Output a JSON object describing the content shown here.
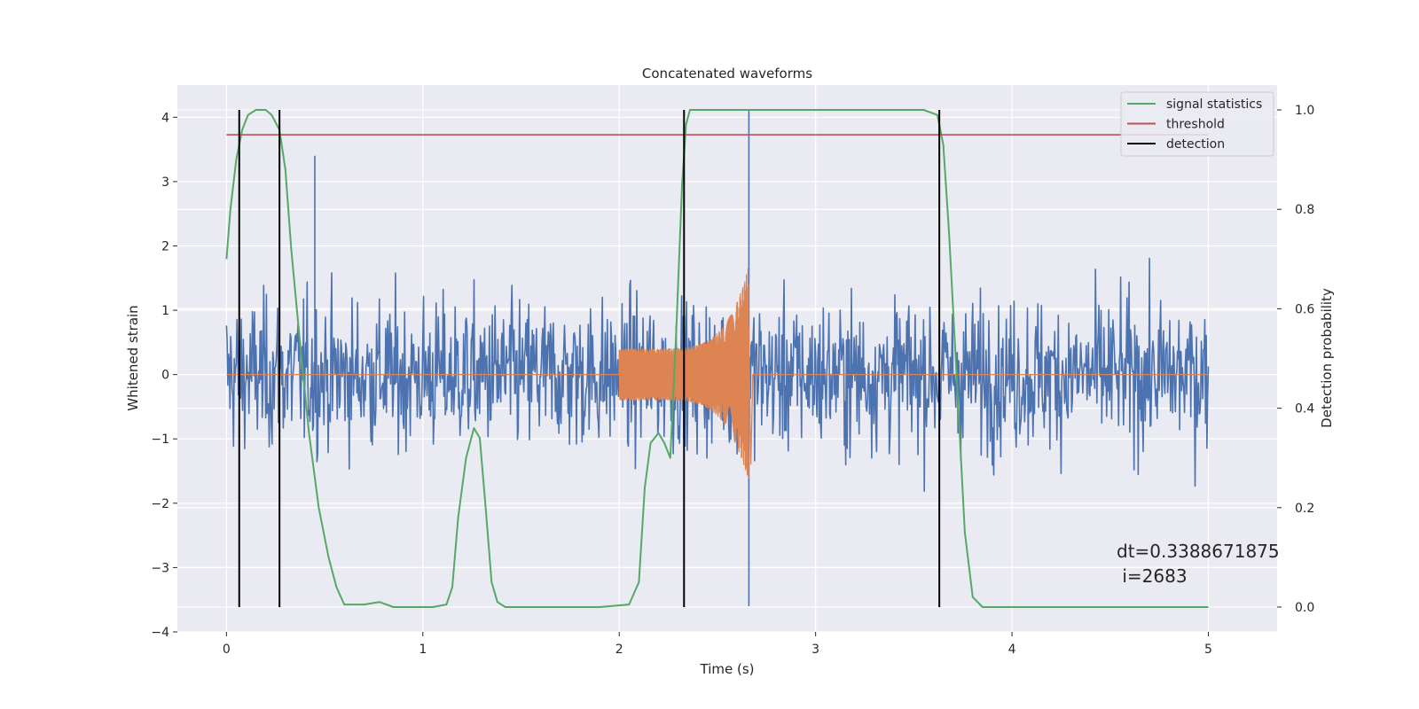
{
  "chart_data": {
    "type": "line",
    "title": "Concatenated waveforms",
    "xlabel": "Time (s)",
    "ylabel": "Whitened strain",
    "y2label": "Detection probability",
    "xlim": [
      -0.25,
      5.35
    ],
    "ylim": [
      -4.0,
      4.5
    ],
    "y2lim": [
      -0.05,
      1.05
    ],
    "xticks": [
      0,
      1,
      2,
      3,
      4,
      5
    ],
    "yticks": [
      -4,
      -3,
      -2,
      -1,
      0,
      1,
      2,
      3,
      4
    ],
    "y2ticks": [
      0.0,
      0.2,
      0.4,
      0.6,
      0.8,
      1.0
    ],
    "grid": true,
    "legend_position": "top-right",
    "colors": {
      "strain": "#4c72b0",
      "injection": "#dd8452",
      "signal_statistics": "#55a868",
      "threshold": "#c44e52",
      "detection": "#000000",
      "background": "#eaeaf2",
      "grid": "#ffffff"
    },
    "strain": {
      "x_range": [
        0,
        5
      ],
      "y_extent": [
        -3.6,
        4.1
      ],
      "typical_extent": [
        -2.5,
        2.5
      ],
      "spikes": [
        {
          "x": 2.66,
          "y": 4.1
        },
        {
          "x": 2.66,
          "y": -3.6
        },
        {
          "x": 0.45,
          "y": 3.4
        }
      ]
    },
    "injection": {
      "x_range": [
        2.0,
        2.68
      ],
      "start_amplitude": 0.4,
      "peak_amplitude": 1.7,
      "peak_x": 2.66
    },
    "series": [
      {
        "name": "signal statistics",
        "axis": "right",
        "x": [
          0,
          0.02,
          0.05,
          0.08,
          0.11,
          0.15,
          0.2,
          0.23,
          0.27,
          0.3,
          0.33,
          0.37,
          0.42,
          0.47,
          0.52,
          0.56,
          0.6,
          0.7,
          0.78,
          0.85,
          0.95,
          1.05,
          1.12,
          1.15,
          1.18,
          1.22,
          1.26,
          1.29,
          1.32,
          1.35,
          1.38,
          1.42,
          1.6,
          1.9,
          2.05,
          2.1,
          2.13,
          2.16,
          2.2,
          2.23,
          2.26,
          2.29,
          2.32,
          2.34,
          2.36,
          2.4,
          3.0,
          3.55,
          3.62,
          3.65,
          3.68,
          3.72,
          3.76,
          3.8,
          3.85,
          4.2,
          5.0
        ],
        "y": [
          0.7,
          0.8,
          0.9,
          0.96,
          0.99,
          1.0,
          1.0,
          0.99,
          0.96,
          0.88,
          0.72,
          0.55,
          0.35,
          0.2,
          0.1,
          0.04,
          0.005,
          0.005,
          0.01,
          0.0,
          0.0,
          0.0,
          0.005,
          0.04,
          0.18,
          0.3,
          0.36,
          0.34,
          0.2,
          0.05,
          0.01,
          0.0,
          0.0,
          0.0,
          0.005,
          0.05,
          0.24,
          0.33,
          0.35,
          0.33,
          0.3,
          0.55,
          0.85,
          0.97,
          1.0,
          1.0,
          1.0,
          1.0,
          0.99,
          0.93,
          0.75,
          0.45,
          0.15,
          0.02,
          0.0,
          0.0,
          0.0
        ]
      },
      {
        "name": "threshold",
        "axis": "right",
        "x": [
          0,
          5
        ],
        "y": [
          0.95,
          0.95
        ]
      },
      {
        "name": "detection",
        "axis": "right",
        "x": [
          0.065,
          0.27,
          2.33,
          3.63
        ]
      }
    ],
    "legend": [
      "signal statistics",
      "threshold",
      "detection"
    ],
    "annotation": "dt=0.3388671875\n i=2683"
  }
}
